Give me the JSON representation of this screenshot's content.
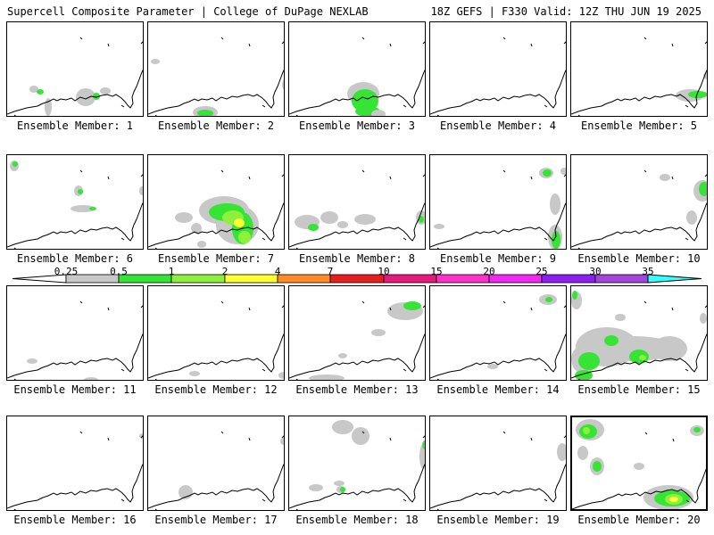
{
  "header": {
    "title_left": "Supercell Composite Parameter | College of DuPage NEXLAB",
    "title_right": "18Z GEFS | F330 Valid: 12Z THU JUN 19 2025"
  },
  "legend": {
    "labels": [
      "0.25",
      "0.5",
      "1",
      "2",
      "4",
      "7",
      "10",
      "15",
      "20",
      "25",
      "30",
      "35"
    ],
    "colors": [
      "#c8c8c8",
      "#35e435",
      "#8cf03c",
      "#ffff32",
      "#ff8c28",
      "#e61e1e",
      "#e6197d",
      "#ff32c8",
      "#f028f0",
      "#8c1ef0",
      "#a046dc",
      "#32ffff"
    ]
  },
  "panels": [
    {
      "label": "Ensemble Member: 1"
    },
    {
      "label": "Ensemble Member: 2"
    },
    {
      "label": "Ensemble Member: 3"
    },
    {
      "label": "Ensemble Member: 4"
    },
    {
      "label": "Ensemble Member: 5"
    },
    {
      "label": "Ensemble Member: 6"
    },
    {
      "label": "Ensemble Member: 7"
    },
    {
      "label": "Ensemble Member: 8"
    },
    {
      "label": "Ensemble Member: 9"
    },
    {
      "label": "Ensemble Member: 10"
    },
    {
      "label": "Ensemble Member: 11"
    },
    {
      "label": "Ensemble Member: 12"
    },
    {
      "label": "Ensemble Member: 13"
    },
    {
      "label": "Ensemble Member: 14"
    },
    {
      "label": "Ensemble Member: 15"
    },
    {
      "label": "Ensemble Member: 16"
    },
    {
      "label": "Ensemble Member: 17"
    },
    {
      "label": "Ensemble Member: 18"
    },
    {
      "label": "Ensemble Member: 19"
    },
    {
      "label": "Ensemble Member: 20"
    }
  ]
}
